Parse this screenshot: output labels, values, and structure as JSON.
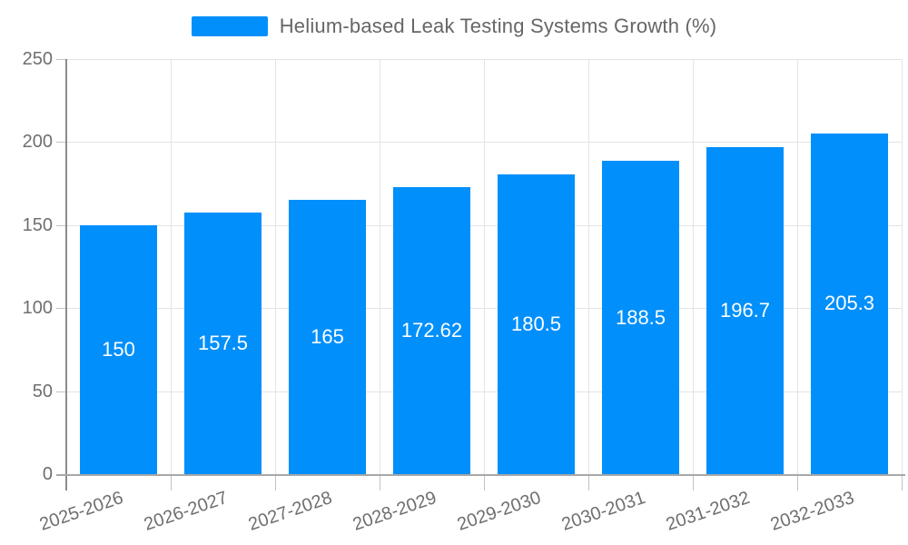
{
  "chart_data": {
    "type": "bar",
    "title": "Helium-based Leak Testing Systems Growth (%)",
    "categories": [
      "2025-2026",
      "2026-2027",
      "2027-2028",
      "2028-2029",
      "2029-2030",
      "2030-2031",
      "2031-2032",
      "2032-2033"
    ],
    "values": [
      150,
      157.5,
      165,
      172.62,
      180.5,
      188.5,
      196.7,
      205.3
    ],
    "xlabel": "",
    "ylabel": "",
    "ylim": [
      0,
      250
    ],
    "y_ticks": [
      0,
      50,
      100,
      150,
      200,
      250
    ],
    "grid": true,
    "legend_position": "top",
    "bar_color": "#008FFB",
    "value_label_color": "#ffffff",
    "axis_label_color": "#6f6f6f",
    "x_label_rotation_deg": -19
  }
}
